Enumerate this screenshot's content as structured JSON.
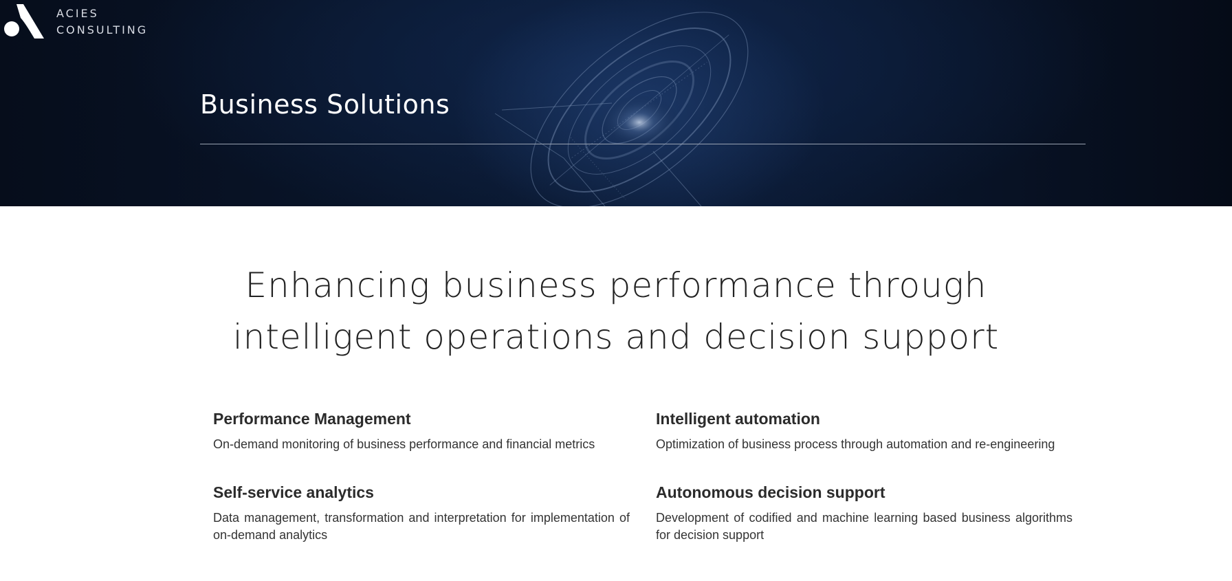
{
  "logo": {
    "line1": "ACIES",
    "line2": "CONSULTING"
  },
  "hero": {
    "title": "Business Solutions"
  },
  "main": {
    "heading": "Enhancing business performance through intelligent operations and decision support"
  },
  "features": [
    {
      "title": "Performance Management",
      "description": "On-demand monitoring of business performance and financial metrics"
    },
    {
      "title": "Intelligent automation",
      "description": "Optimization of business process through automation and re-engineering"
    },
    {
      "title": "Self-service analytics",
      "description": "Data management, transformation and interpretation for implementation of on-demand analytics"
    },
    {
      "title": "Autonomous decision support",
      "description": "Development of codified and machine learning based business algorithms for decision support"
    }
  ],
  "colors": {
    "hero_bg": "#0a1830",
    "text_dark": "#2b2b2b"
  }
}
